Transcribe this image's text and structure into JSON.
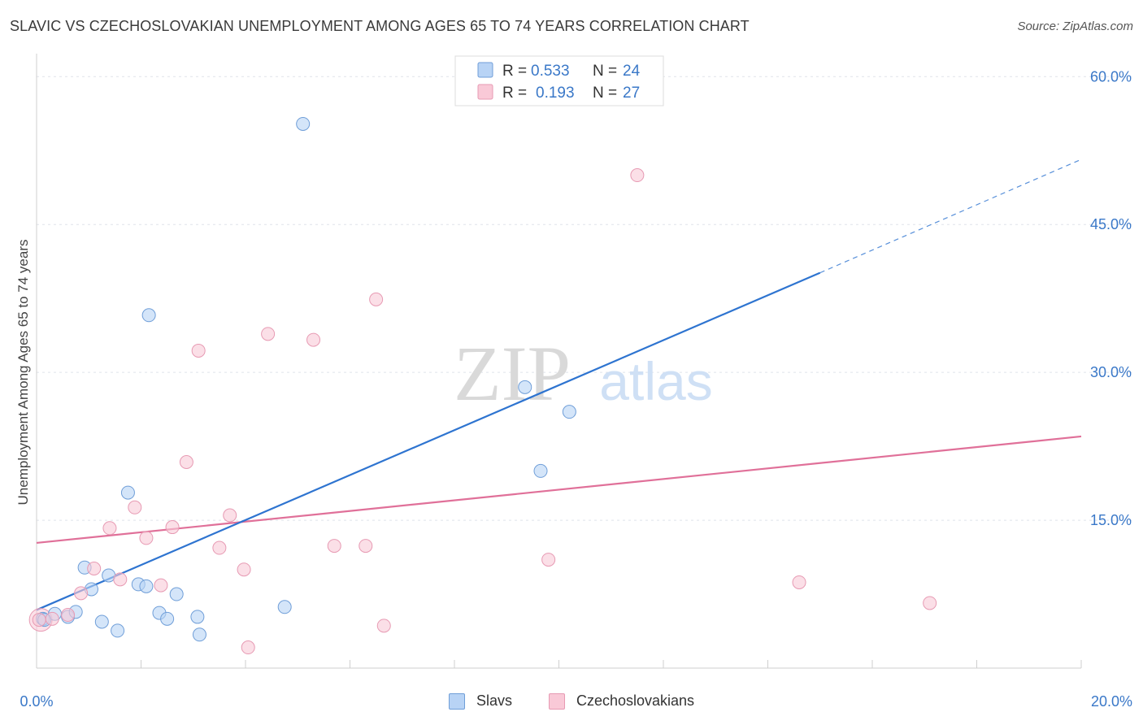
{
  "header": {
    "title": "SLAVIC VS CZECHOSLOVAKIAN UNEMPLOYMENT AMONG AGES 65 TO 74 YEARS CORRELATION CHART",
    "source": "Source: ZipAtlas.com"
  },
  "watermark": {
    "zip": "ZIP",
    "atlas": "atlas"
  },
  "colors": {
    "slavs_fill": "#b8d3f5",
    "slavs_stroke": "#6f9ed8",
    "slavs_line": "#2e74d0",
    "czech_fill": "#f9c9d7",
    "czech_stroke": "#e79ab3",
    "czech_line": "#e07099",
    "value_text": "#3a78c8",
    "grid": "#dfe3ea"
  },
  "legend_top": {
    "rows": [
      {
        "series": "Slavs",
        "r_label": "R =",
        "r_value": "0.533",
        "n_label": "N =",
        "n_value": "24"
      },
      {
        "series": "Czechoslovakians",
        "r_label": "R =",
        "r_value": "0.193",
        "n_label": "N =",
        "n_value": "27"
      }
    ]
  },
  "legend_bottom": {
    "items": [
      "Slavs",
      "Czechoslovakians"
    ]
  },
  "chart_data": {
    "type": "scatter",
    "title": "SLAVIC VS CZECHOSLOVAKIAN UNEMPLOYMENT AMONG AGES 65 TO 74 YEARS CORRELATION CHART",
    "xlabel": "",
    "ylabel": "Unemployment Among Ages 65 to 74 years",
    "xlim": [
      0,
      20
    ],
    "ylim": [
      0,
      62
    ],
    "x_tick_labels": [
      "0.0%",
      "20.0%"
    ],
    "y_ticks": [
      15,
      30,
      45,
      60
    ],
    "y_tick_labels": [
      "15.0%",
      "30.0%",
      "45.0%",
      "60.0%"
    ],
    "grid": true,
    "legend_position": "top-center",
    "series": [
      {
        "name": "Slavs",
        "points": [
          [
            0.12,
            5.0
          ],
          [
            0.35,
            5.5
          ],
          [
            0.6,
            5.2
          ],
          [
            0.75,
            5.7
          ],
          [
            0.92,
            10.2
          ],
          [
            1.05,
            8.0
          ],
          [
            1.25,
            4.7
          ],
          [
            1.38,
            9.4
          ],
          [
            1.55,
            3.8
          ],
          [
            1.75,
            17.8
          ],
          [
            1.95,
            8.5
          ],
          [
            2.1,
            8.3
          ],
          [
            2.15,
            35.8
          ],
          [
            2.35,
            5.6
          ],
          [
            2.5,
            5.0
          ],
          [
            2.68,
            7.5
          ],
          [
            3.08,
            5.2
          ],
          [
            3.12,
            3.4
          ],
          [
            4.75,
            6.2
          ],
          [
            5.1,
            55.2
          ],
          [
            9.35,
            28.5
          ],
          [
            9.65,
            20.0
          ],
          [
            10.2,
            26.0
          ],
          [
            0.15,
            4.9
          ]
        ],
        "trend": {
          "x0": 0.0,
          "y0": 5.9,
          "x1": 15.0,
          "y1": 40.1,
          "dashed_to_x": 20.0,
          "dashed_to_y": 51.6
        }
      },
      {
        "name": "Czechoslovakians",
        "points": [
          [
            0.05,
            4.9
          ],
          [
            0.3,
            5.0
          ],
          [
            0.6,
            5.4
          ],
          [
            0.85,
            7.6
          ],
          [
            1.1,
            10.1
          ],
          [
            1.4,
            14.2
          ],
          [
            1.6,
            9.0
          ],
          [
            1.88,
            16.3
          ],
          [
            2.1,
            13.2
          ],
          [
            2.38,
            8.4
          ],
          [
            2.6,
            14.3
          ],
          [
            2.87,
            20.9
          ],
          [
            3.1,
            32.2
          ],
          [
            3.5,
            12.2
          ],
          [
            3.7,
            15.5
          ],
          [
            3.97,
            10.0
          ],
          [
            4.05,
            2.1
          ],
          [
            4.43,
            33.9
          ],
          [
            5.3,
            33.3
          ],
          [
            5.7,
            12.4
          ],
          [
            6.3,
            12.4
          ],
          [
            6.5,
            37.4
          ],
          [
            6.65,
            4.3
          ],
          [
            9.8,
            11.0
          ],
          [
            11.5,
            50.0
          ],
          [
            14.6,
            8.7
          ],
          [
            17.1,
            6.6
          ]
        ],
        "trend": {
          "x0": 0.0,
          "y0": 12.7,
          "x1": 20.0,
          "y1": 23.5
        }
      }
    ]
  }
}
